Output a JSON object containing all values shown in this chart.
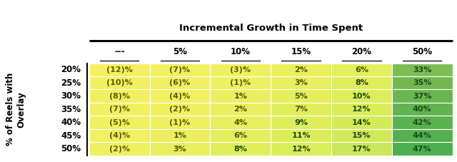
{
  "title": "Incremental Growth in Time Spent",
  "col_labels": [
    "---",
    "5%",
    "10%",
    "15%",
    "20%",
    "50%"
  ],
  "row_labels": [
    "20%",
    "25%",
    "30%",
    "35%",
    "40%",
    "45%",
    "50%"
  ],
  "y_axis_label": "% of Reels with\nOverlay",
  "cell_text": [
    [
      "(12)%",
      "(7)%",
      "(3)%",
      "2%",
      "6%",
      "33%"
    ],
    [
      "(10)%",
      "(6)%",
      "(1)%",
      "3%",
      "8%",
      "35%"
    ],
    [
      "(8)%",
      "(4)%",
      "1%",
      "5%",
      "10%",
      "37%"
    ],
    [
      "(7)%",
      "(2)%",
      "2%",
      "7%",
      "12%",
      "40%"
    ],
    [
      "(5)%",
      "(1)%",
      "4%",
      "9%",
      "14%",
      "42%"
    ],
    [
      "(4)%",
      "1%",
      "6%",
      "11%",
      "15%",
      "44%"
    ],
    [
      "(2)%",
      "3%",
      "8%",
      "12%",
      "17%",
      "47%"
    ]
  ],
  "cell_values": [
    [
      -12,
      -7,
      -3,
      2,
      6,
      33
    ],
    [
      -10,
      -6,
      -1,
      3,
      8,
      35
    ],
    [
      -8,
      -4,
      1,
      5,
      10,
      37
    ],
    [
      -7,
      -2,
      2,
      7,
      12,
      40
    ],
    [
      -5,
      -1,
      4,
      9,
      14,
      42
    ],
    [
      -4,
      1,
      6,
      11,
      15,
      44
    ],
    [
      -2,
      3,
      8,
      12,
      17,
      47
    ]
  ],
  "title_fontsize": 9.5,
  "cell_fontsize": 8.0,
  "header_fontsize": 8.5,
  "row_label_fontsize": 8.5,
  "ylabel_fontsize": 8.5,
  "vmin": -12,
  "vmax": 47,
  "color_stops": [
    [
      0.0,
      "#f5f060"
    ],
    [
      0.2,
      "#eef060"
    ],
    [
      0.42,
      "#d8ee58"
    ],
    [
      0.55,
      "#c0e060"
    ],
    [
      0.68,
      "#96cc5a"
    ],
    [
      0.8,
      "#70b850"
    ],
    [
      1.0,
      "#4caf50"
    ]
  ]
}
